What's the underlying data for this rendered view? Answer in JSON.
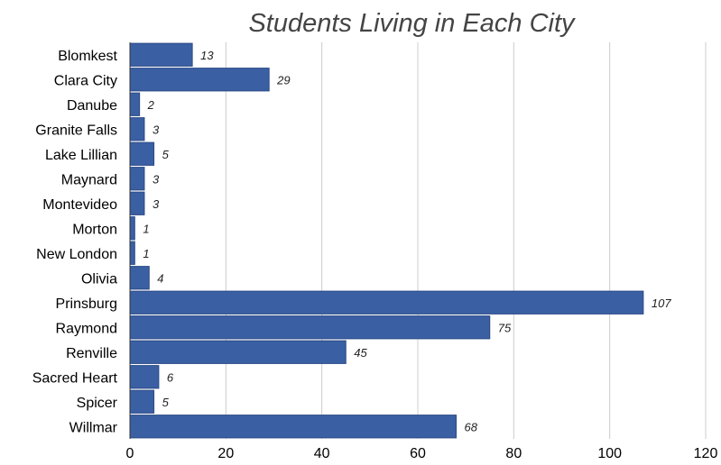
{
  "chart_data": {
    "type": "bar",
    "orientation": "horizontal",
    "title": "Students Living in Each City",
    "xlabel": "",
    "ylabel": "",
    "categories": [
      "Blomkest",
      "Clara City",
      "Danube",
      "Granite Falls",
      "Lake Lillian",
      "Maynard",
      "Montevideo",
      "Morton",
      "New London",
      "Olivia",
      "Prinsburg",
      "Raymond",
      "Renville",
      "Sacred Heart",
      "Spicer",
      "Willmar"
    ],
    "values": [
      13,
      29,
      2,
      3,
      5,
      3,
      3,
      1,
      1,
      4,
      107,
      75,
      45,
      6,
      5,
      68
    ],
    "data_labels": [
      "13",
      "29",
      "2",
      "3",
      "5",
      "3",
      "3",
      "1",
      "1",
      "4",
      "107",
      "75",
      "45",
      "6",
      "5",
      "68"
    ],
    "xlim": [
      0,
      120
    ],
    "x_ticks": [
      0,
      20,
      40,
      60,
      80,
      100,
      120
    ],
    "x_tick_labels": [
      "0",
      "20",
      "40",
      "60",
      "80",
      "100",
      "120"
    ],
    "grid": "vertical",
    "legend": "none",
    "bar_color": "#3b5fa3",
    "bar_edge_color": "#2a4a86"
  }
}
